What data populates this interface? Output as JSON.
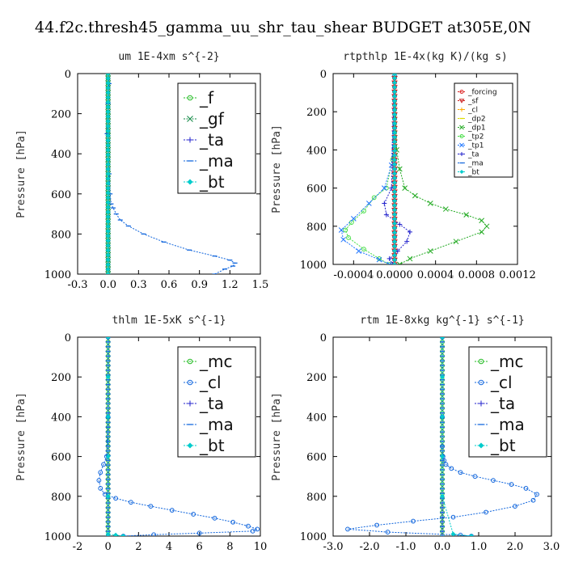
{
  "title": "44.f2c.thresh45_gamma_uu_shr_tau_shear  BUDGET at305E,0N",
  "chart_data": [
    {
      "type": "line",
      "title": "um   1E-4xm s^{-2}",
      "ylabel": "Pressure [hPa]",
      "xlim": [
        -0.3,
        1.5
      ],
      "ylim": [
        1000,
        0
      ],
      "xticks": [
        "-0.3",
        "0.0",
        "0.3",
        "0.6",
        "0.9",
        "1.2",
        "1.5"
      ],
      "yticks": [
        "0",
        "200",
        "400",
        "600",
        "800",
        "1000"
      ],
      "legend_position": "top-right",
      "legend_size": "large",
      "series": [
        {
          "name": "_f",
          "color": "#22bb22",
          "marker": "circle",
          "x": [
            0,
            0,
            0,
            0,
            0,
            0
          ],
          "y": [
            0,
            200,
            400,
            600,
            800,
            1000
          ]
        },
        {
          "name": "_gf",
          "color": "#118844",
          "marker": "x",
          "x": [
            0,
            0,
            0,
            0,
            0,
            0
          ],
          "y": [
            0,
            200,
            400,
            600,
            800,
            1000
          ]
        },
        {
          "name": "_ta",
          "color": "#2222cc",
          "marker": "plus",
          "x": [
            0,
            0,
            0,
            0,
            0,
            0
          ],
          "y": [
            0,
            200,
            400,
            600,
            800,
            1000
          ]
        },
        {
          "name": "_ma",
          "color": "#1166dd",
          "marker": "dash",
          "x": [
            0,
            0.01,
            0,
            -0.01,
            0.01,
            0.02,
            0.03,
            0.05,
            0.08,
            0.12,
            0.2,
            0.35,
            0.55,
            0.8,
            1.05,
            1.2,
            1.25,
            1.23,
            1.15,
            1.05
          ],
          "y": [
            0,
            50,
            150,
            300,
            500,
            600,
            650,
            670,
            700,
            730,
            760,
            800,
            840,
            880,
            910,
            930,
            945,
            960,
            975,
            1000
          ]
        },
        {
          "name": "_bt",
          "color": "#00cccc",
          "marker": "diamond",
          "x": [
            0,
            0,
            0,
            0,
            0,
            0
          ],
          "y": [
            0,
            200,
            400,
            600,
            800,
            1000
          ]
        }
      ]
    },
    {
      "type": "line",
      "title": "rtpthlp   1E-4x(kg K)/(kg s)",
      "ylabel": "Pressure [hPa]",
      "xlim": [
        -0.0006,
        0.0012
      ],
      "ylim": [
        1000,
        0
      ],
      "xticks": [
        "-0.0004",
        "0.0000",
        "0.0004",
        "0.0008",
        "0.0012"
      ],
      "yticks": [
        "0",
        "200",
        "400",
        "600",
        "800",
        "1000"
      ],
      "legend_position": "top-right",
      "legend_size": "small",
      "series": [
        {
          "name": "_forcing",
          "color": "#dd2222",
          "marker": "circle",
          "x": [
            0,
            0,
            0,
            0,
            0,
            0
          ],
          "y": [
            0,
            200,
            400,
            600,
            800,
            1000
          ]
        },
        {
          "name": "_sf",
          "color": "#cc2222",
          "marker": "triangle",
          "x": [
            0,
            0,
            0,
            0,
            0,
            0
          ],
          "y": [
            0,
            200,
            400,
            600,
            800,
            1000
          ]
        },
        {
          "name": "_cl",
          "color": "#ffaa00",
          "marker": "plus",
          "x": [
            0,
            0,
            0,
            0,
            0,
            0
          ],
          "y": [
            0,
            200,
            400,
            600,
            800,
            1000
          ]
        },
        {
          "name": "_dp2",
          "color": "#dddd00",
          "marker": "dash",
          "x": [
            0,
            0,
            0,
            0,
            0,
            0
          ],
          "y": [
            0,
            200,
            400,
            600,
            800,
            1000
          ]
        },
        {
          "name": "_dp1",
          "color": "#22aa22",
          "marker": "x",
          "x": [
            0,
            2e-05,
            5e-05,
            0.0001,
            0.0002,
            0.00035,
            0.0005,
            0.0007,
            0.00085,
            0.0009,
            0.00085,
            0.0006,
            0.00035,
            0.00015,
            5e-05
          ],
          "y": [
            0,
            400,
            500,
            600,
            640,
            680,
            710,
            740,
            770,
            800,
            830,
            880,
            930,
            970,
            1000
          ]
        },
        {
          "name": "_tp2",
          "color": "#44dd44",
          "marker": "circle",
          "x": [
            0,
            -2e-05,
            -8e-05,
            -0.0002,
            -0.0003,
            -0.00042,
            -0.00048,
            -0.00045,
            -0.0003,
            -0.00015,
            -5e-05
          ],
          "y": [
            0,
            450,
            600,
            650,
            720,
            780,
            820,
            860,
            920,
            970,
            1000
          ]
        },
        {
          "name": "_tp1",
          "color": "#2277ff",
          "marker": "x",
          "x": [
            0,
            -3e-05,
            -0.0001,
            -0.00025,
            -0.0004,
            -0.00052,
            -0.0005,
            -0.00035,
            -0.00015,
            -5e-05
          ],
          "y": [
            0,
            480,
            600,
            680,
            760,
            820,
            870,
            930,
            975,
            1000
          ]
        },
        {
          "name": "_ta",
          "color": "#2222cc",
          "marker": "plus",
          "x": [
            0,
            -3e-05,
            -0.0001,
            -8e-05,
            5e-05,
            0.00015,
            0.00012,
            3e-05,
            -5e-05,
            -2e-05
          ],
          "y": [
            0,
            600,
            680,
            740,
            790,
            830,
            880,
            930,
            970,
            1000
          ]
        },
        {
          "name": "_ma",
          "color": "#1166dd",
          "marker": "dash",
          "x": [
            0,
            0,
            0,
            0,
            0,
            0
          ],
          "y": [
            0,
            200,
            400,
            600,
            800,
            1000
          ]
        },
        {
          "name": "_bt",
          "color": "#00cccc",
          "marker": "diamond",
          "x": [
            0,
            0,
            0,
            0,
            0,
            0
          ],
          "y": [
            0,
            200,
            400,
            600,
            800,
            1000
          ]
        }
      ]
    },
    {
      "type": "line",
      "title": "thlm   1E-5xK s^{-1}",
      "ylabel": "Pressure [hPa]",
      "xlim": [
        -2,
        10
      ],
      "ylim": [
        1000,
        0
      ],
      "xticks": [
        "-2",
        "0",
        "2",
        "4",
        "6",
        "8",
        "10"
      ],
      "yticks": [
        "0",
        "200",
        "400",
        "600",
        "800",
        "1000"
      ],
      "legend_position": "top-right",
      "legend_size": "large",
      "series": [
        {
          "name": "_mc",
          "color": "#22bb22",
          "marker": "circle",
          "x": [
            0,
            0,
            0,
            0,
            0,
            0
          ],
          "y": [
            0,
            200,
            400,
            600,
            800,
            1000
          ]
        },
        {
          "name": "_cl",
          "color": "#1166dd",
          "marker": "circle",
          "x": [
            0,
            0,
            -0.1,
            -0.3,
            -0.5,
            -0.6,
            -0.5,
            -0.2,
            0.5,
            1.5,
            2.8,
            4.2,
            5.6,
            7,
            8.2,
            9.2,
            9.8,
            9.5,
            6,
            3,
            1
          ],
          "y": [
            0,
            400,
            600,
            640,
            680,
            720,
            760,
            790,
            810,
            830,
            850,
            870,
            890,
            910,
            930,
            950,
            965,
            975,
            985,
            993,
            1000
          ]
        },
        {
          "name": "_ta",
          "color": "#2222cc",
          "marker": "plus",
          "x": [
            0,
            0,
            0,
            0,
            0,
            0
          ],
          "y": [
            0,
            200,
            400,
            600,
            800,
            1000
          ]
        },
        {
          "name": "_ma",
          "color": "#1166dd",
          "marker": "dash",
          "x": [
            0,
            0,
            0,
            0,
            0,
            0
          ],
          "y": [
            0,
            200,
            400,
            600,
            800,
            1000
          ]
        },
        {
          "name": "_bt",
          "color": "#00cccc",
          "marker": "diamond",
          "x": [
            0,
            0,
            0,
            0,
            0,
            0,
            0.5,
            1
          ],
          "y": [
            0,
            200,
            400,
            600,
            800,
            990,
            995,
            1000
          ]
        }
      ]
    },
    {
      "type": "line",
      "title": "rtm   1E-8xkg kg^{-1} s^{-1}",
      "ylabel": "Pressure [hPa]",
      "xlim": [
        -3,
        3
      ],
      "ylim": [
        1000,
        0
      ],
      "xticks": [
        "-3.0",
        "-2.0",
        "-1.0",
        "0.0",
        "1.0",
        "2.0",
        "3.0"
      ],
      "yticks": [
        "0",
        "200",
        "400",
        "600",
        "800",
        "1000"
      ],
      "legend_position": "top-right",
      "legend_size": "large",
      "series": [
        {
          "name": "_mc",
          "color": "#22bb22",
          "marker": "circle",
          "x": [
            0,
            0,
            0,
            0,
            0,
            0
          ],
          "y": [
            0,
            200,
            400,
            600,
            800,
            1000
          ]
        },
        {
          "name": "_cl",
          "color": "#1166dd",
          "marker": "circle",
          "x": [
            0,
            0,
            0,
            0.02,
            0.05,
            0.1,
            0.25,
            0.5,
            0.9,
            1.4,
            1.9,
            2.3,
            2.6,
            2.5,
            2.0,
            1.2,
            0.3,
            -0.8,
            -1.8,
            -2.6,
            -1.5,
            0.5,
            0.8
          ],
          "y": [
            0,
            400,
            550,
            600,
            620,
            640,
            660,
            680,
            700,
            720,
            740,
            760,
            790,
            820,
            850,
            880,
            905,
            925,
            945,
            965,
            980,
            995,
            1000
          ]
        },
        {
          "name": "_ta",
          "color": "#2222cc",
          "marker": "plus",
          "x": [
            0,
            0,
            0,
            0,
            0,
            0
          ],
          "y": [
            0,
            200,
            400,
            600,
            800,
            1000
          ]
        },
        {
          "name": "_ma",
          "color": "#1166dd",
          "marker": "dash",
          "x": [
            0,
            0,
            0,
            0,
            0,
            0
          ],
          "y": [
            0,
            200,
            400,
            600,
            800,
            1000
          ]
        },
        {
          "name": "_bt",
          "color": "#00cccc",
          "marker": "diamond",
          "x": [
            0,
            0,
            0,
            0,
            0,
            0.3,
            0.8
          ],
          "y": [
            0,
            200,
            400,
            600,
            800,
            990,
            1000
          ]
        }
      ]
    }
  ]
}
